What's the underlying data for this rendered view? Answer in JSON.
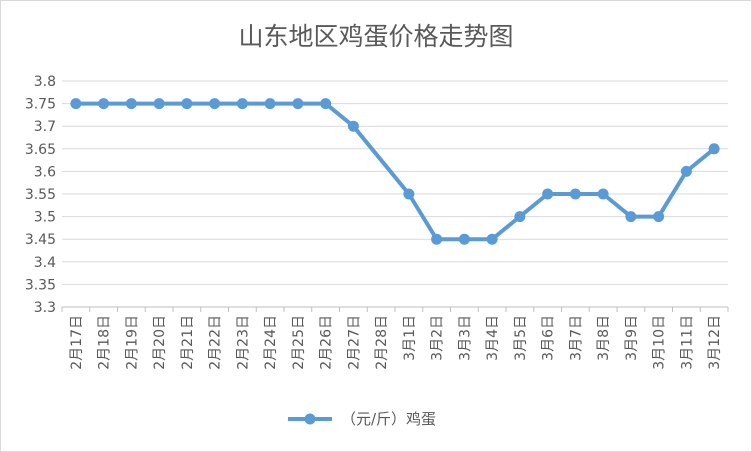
{
  "chart_data": {
    "type": "line",
    "title": "山东地区鸡蛋价格走势图",
    "xlabel": "",
    "ylabel": "",
    "ylim": [
      3.3,
      3.8
    ],
    "yticks": [
      "3.3",
      "3.35",
      "3.4",
      "3.45",
      "3.5",
      "3.55",
      "3.6",
      "3.65",
      "3.7",
      "3.75",
      "3.8"
    ],
    "grid": true,
    "legend_position": "bottom",
    "categories": [
      "2月17日",
      "2月18日",
      "2月19日",
      "2月20日",
      "2月21日",
      "2月22日",
      "2月23日",
      "2月24日",
      "2月25日",
      "2月26日",
      "2月27日",
      "2月28日",
      "3月1日",
      "3月2日",
      "3月3日",
      "3月4日",
      "3月5日",
      "3月6日",
      "3月7日",
      "3月8日",
      "3月9日",
      "3月10日",
      "3月11日",
      "3月12日"
    ],
    "series": [
      {
        "name": "（元/斤）鸡蛋",
        "color": "#5b9bd5",
        "values": [
          3.75,
          3.75,
          3.75,
          3.75,
          3.75,
          3.75,
          3.75,
          3.75,
          3.75,
          3.75,
          3.7,
          null,
          3.55,
          3.45,
          3.45,
          3.45,
          3.5,
          3.55,
          3.55,
          3.55,
          3.5,
          3.5,
          3.6,
          3.65
        ]
      }
    ]
  }
}
